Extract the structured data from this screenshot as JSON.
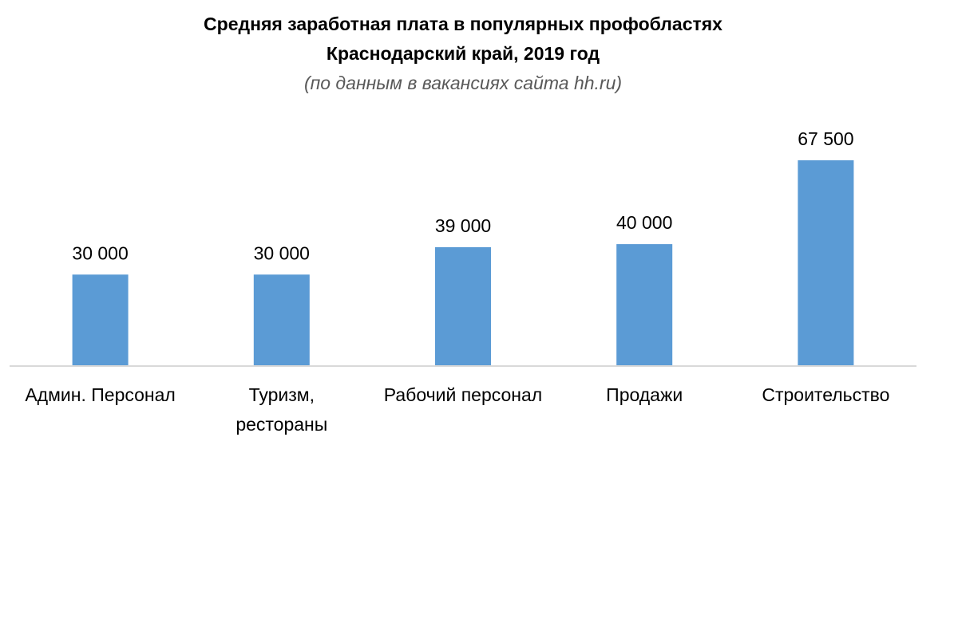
{
  "chart_data": {
    "type": "bar",
    "title": "Средняя заработная плата в популярных профобластях",
    "subtitle": "Краснодарский край, 2019 год",
    "note": "(по данным в вакансиях сайта hh.ru)",
    "categories": [
      [
        "Админ. Персонал"
      ],
      [
        "Туризм,",
        "рестораны"
      ],
      [
        "Рабочий персонал"
      ],
      [
        "Продажи"
      ],
      [
        "Строительство"
      ]
    ],
    "values": [
      30000,
      30000,
      39000,
      40000,
      67500
    ],
    "data_labels": [
      "30 000",
      "30 000",
      "39 000",
      "40 000",
      "67 500"
    ],
    "bar_color": "#5b9bd5",
    "axis_color": "#d9d9d9",
    "ylim": [
      0,
      67500
    ],
    "grid": false,
    "legend": "none"
  }
}
